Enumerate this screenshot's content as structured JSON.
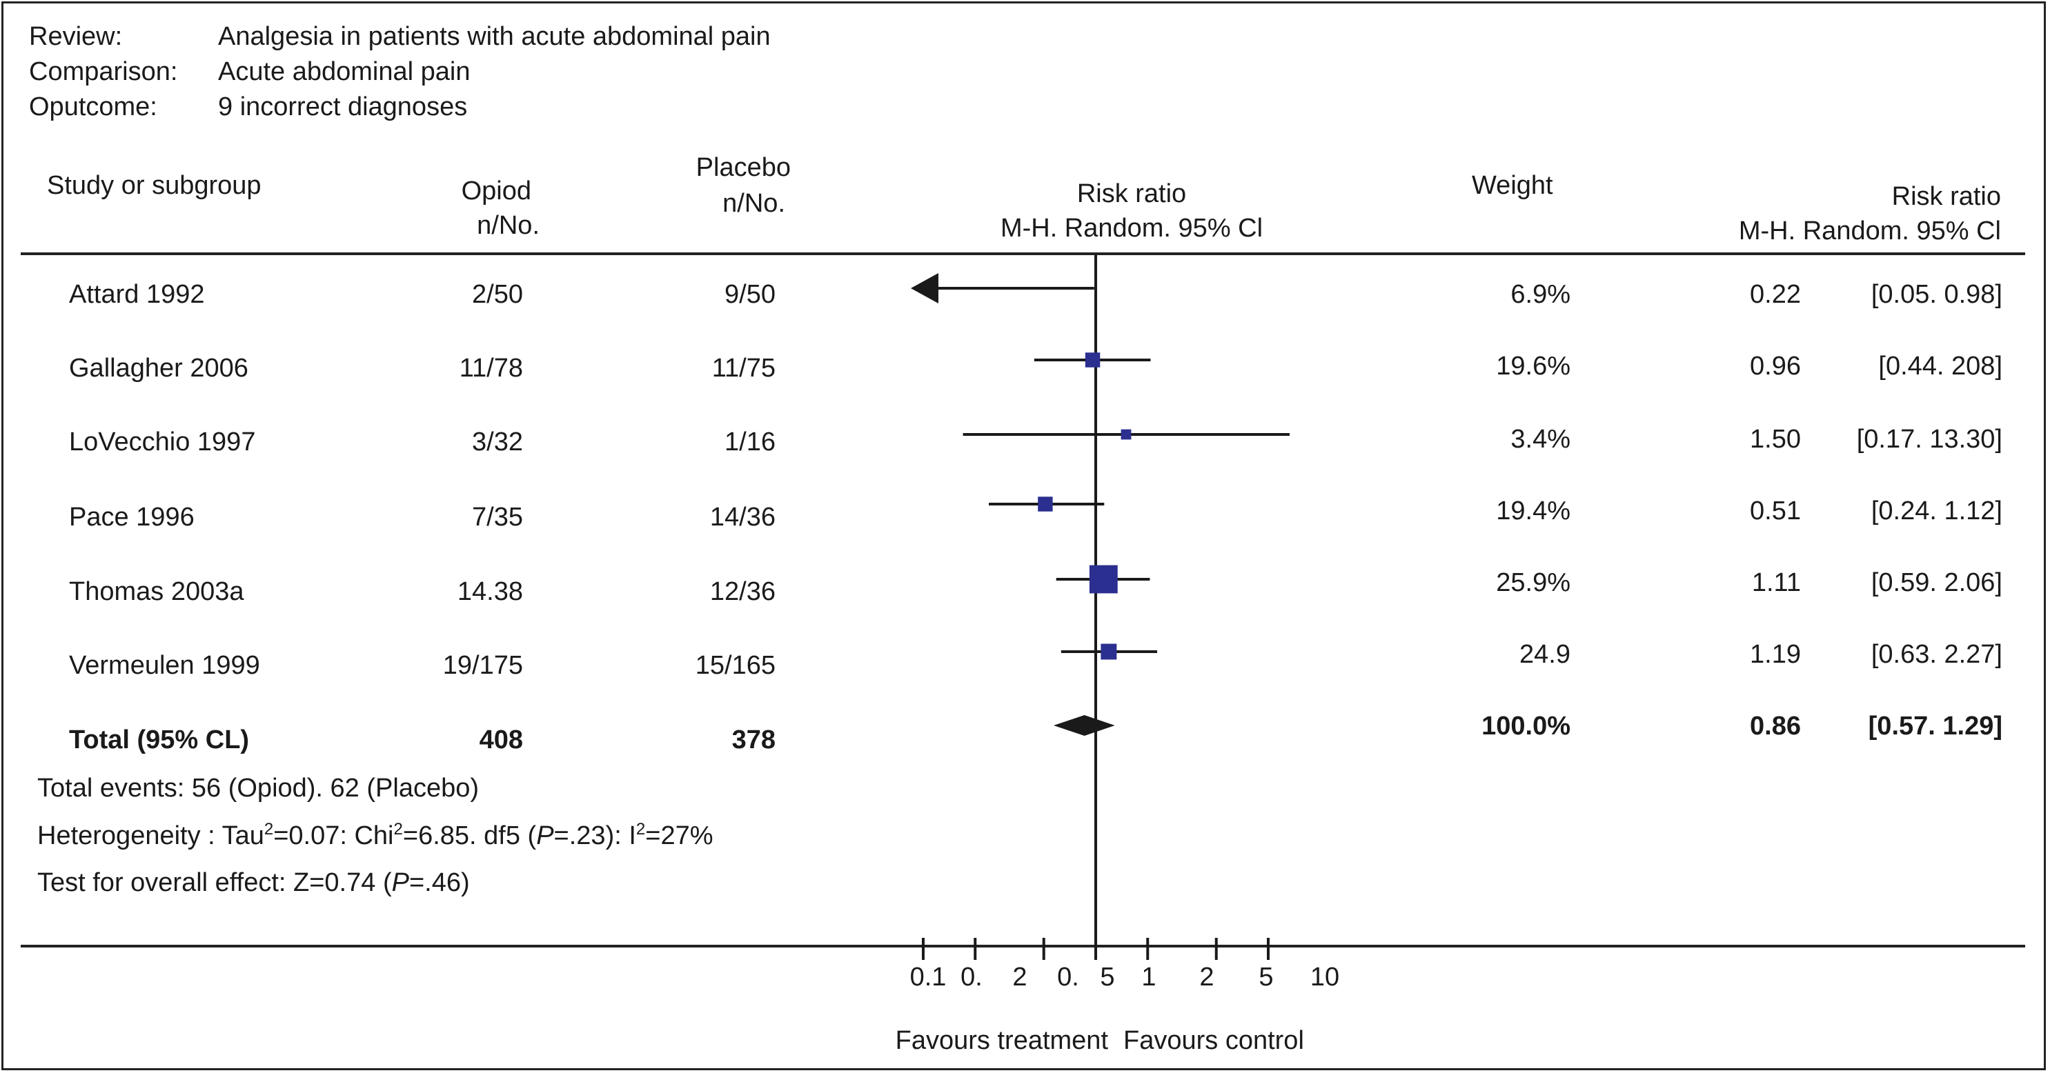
{
  "meta": {
    "review_label": "Review:",
    "review": "Analgesia in patients with acute abdominal pain",
    "comparison_label": "Comparison:",
    "comparison": "Acute abdominal pain",
    "outcome_label": "Oputcome:",
    "outcome": "9 incorrect diagnoses"
  },
  "columns": {
    "study": "Study or subgroup",
    "opioid_1": "Opiod",
    "opioid_2": "n/No.",
    "placebo_1": "Placebo",
    "placebo_2": "n/No.",
    "rr_plot_1": "Risk ratio",
    "rr_plot_2": "M-H. Random. 95% Cl",
    "weight": "Weight",
    "rr_1": "Risk ratio",
    "rr_2": "M-H. Random. 95% Cl"
  },
  "rows": [
    {
      "study": "Attard 1992",
      "opioid": "2/50",
      "placebo": "9/50",
      "weight": "6.9%",
      "rr": "0.22",
      "ci": "[0.05. 0.98]"
    },
    {
      "study": "Gallagher 2006",
      "opioid": "11/78",
      "placebo": "11/75",
      "weight": "19.6%",
      "rr": "0.96",
      "ci": "[0.44. 208]"
    },
    {
      "study": "LoVecchio 1997",
      "opioid": "3/32",
      "placebo": "1/16",
      "weight": "3.4%",
      "rr": "1.50",
      "ci": "[0.17. 13.30]"
    },
    {
      "study": "Pace 1996",
      "opioid": "7/35",
      "placebo": "14/36",
      "weight": "19.4%",
      "rr": "0.51",
      "ci": "[0.24. 1.12]"
    },
    {
      "study": "Thomas 2003a",
      "opioid": "14.38",
      "placebo": "12/36",
      "weight": "25.9%",
      "rr": "1.11",
      "ci": "[0.59. 2.06]"
    },
    {
      "study": "Vermeulen 1999",
      "opioid": "19/175",
      "placebo": "15/165",
      "weight": "24.9",
      "rr": "1.19",
      "ci": "[0.63. 2.27]"
    }
  ],
  "total": {
    "study": "Total (95% CL)",
    "opioid": "408",
    "placebo": "378",
    "weight": "100.0%",
    "rr": "0.86",
    "ci": "[0.57. 1.29]"
  },
  "footer": {
    "events": "Total events: 56 (Opiod). 62 (Placebo)",
    "het_a": "Heterogeneity : Tau",
    "het_sup1": "2",
    "het_b": "=0.07: Chi",
    "het_sup2": "2",
    "het_c": "=6.85. df5 (",
    "het_p": "P",
    "het_d": "=.23): I",
    "het_sup3": "2",
    "het_e": "=27%",
    "test_a": "Test for overall effect: Z=0.74 (",
    "test_p": "P",
    "test_b": "=.46)"
  },
  "axis": {
    "tick_labels": [
      "0.1",
      "0.",
      "2",
      "0.",
      "5",
      "1",
      "2",
      "5",
      "10"
    ],
    "favours_left": "Favours treatment",
    "favours_right": "Favours control"
  },
  "chart_data": {
    "type": "forest",
    "measure": "Risk ratio (M-H, Random, 95% CI)",
    "x_scale": "log",
    "xlim": [
      0.1,
      10
    ],
    "ticks": [
      0.1,
      0.2,
      0.5,
      1,
      2,
      5,
      10
    ],
    "reference_line": 1,
    "studies": [
      {
        "name": "Attard 1992",
        "rr": 0.22,
        "lower": 0.05,
        "upper": 0.98,
        "weight": 6.9
      },
      {
        "name": "Gallagher 2006",
        "rr": 0.96,
        "lower": 0.44,
        "upper": 2.08,
        "weight": 19.6
      },
      {
        "name": "LoVecchio 1997",
        "rr": 1.5,
        "lower": 0.17,
        "upper": 13.3,
        "weight": 3.4
      },
      {
        "name": "Pace 1996",
        "rr": 0.51,
        "lower": 0.24,
        "upper": 1.12,
        "weight": 19.4
      },
      {
        "name": "Thomas 2003a",
        "rr": 1.11,
        "lower": 0.59,
        "upper": 2.06,
        "weight": 25.9
      },
      {
        "name": "Vermeulen 1999",
        "rr": 1.19,
        "lower": 0.63,
        "upper": 2.27,
        "weight": 24.9
      }
    ],
    "pooled": {
      "name": "Total (95% CL)",
      "rr": 0.86,
      "lower": 0.57,
      "upper": 1.29,
      "weight": 100.0
    },
    "colors": {
      "marker": "#2b2f8f",
      "line": "#1a1a1a"
    }
  }
}
